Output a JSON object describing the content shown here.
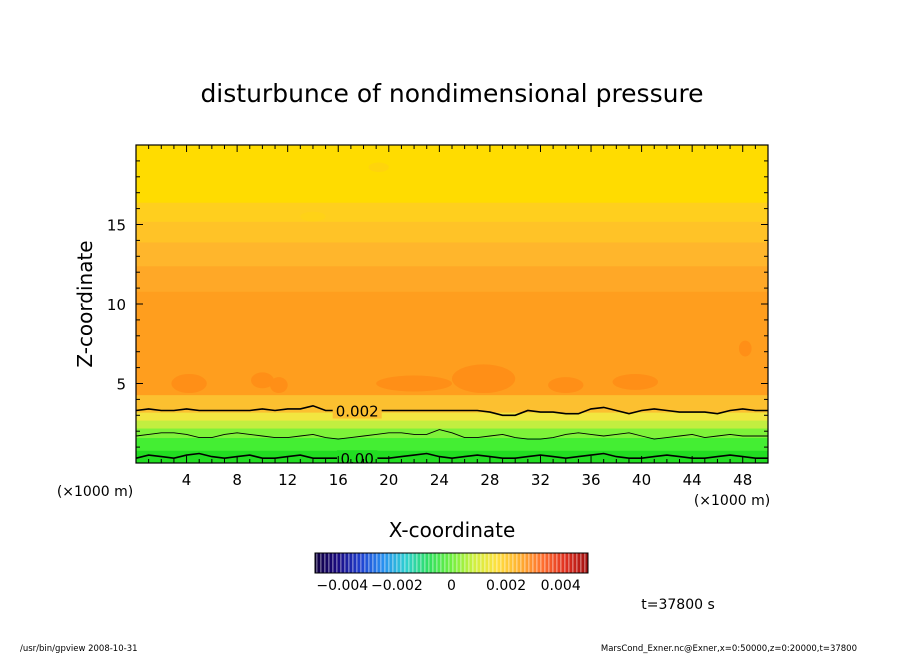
{
  "chart_data": {
    "type": "heatmap",
    "title": "disturbunce of nondimensional pressure",
    "xlabel": "X-coordinate",
    "ylabel": "Z-coordinate",
    "x_unit_left": "(×1000 m)",
    "x_unit_right": "(×1000 m)",
    "xlim": [
      0,
      50
    ],
    "ylim": [
      0,
      20
    ],
    "x_ticks": [
      4,
      8,
      12,
      16,
      20,
      24,
      28,
      32,
      36,
      40,
      44,
      48
    ],
    "y_ticks": [
      5,
      10,
      15
    ],
    "grid": false,
    "bands": [
      {
        "z0": 0.0,
        "z1": 0.8,
        "color": "#22dd22"
      },
      {
        "z0": 0.8,
        "z1": 1.6,
        "color": "#44ee33"
      },
      {
        "z0": 1.6,
        "z1": 2.2,
        "color": "#7ef23a"
      },
      {
        "z0": 2.2,
        "z1": 2.7,
        "color": "#c2ee40"
      },
      {
        "z0": 2.7,
        "z1": 3.2,
        "color": "#f2e640"
      },
      {
        "z0": 3.2,
        "z1": 4.3,
        "color": "#fcc030"
      },
      {
        "z0": 4.3,
        "z1": 10.8,
        "color": "#ff9e1e"
      },
      {
        "z0": 10.8,
        "z1": 12.4,
        "color": "#ffa827"
      },
      {
        "z0": 12.4,
        "z1": 13.9,
        "color": "#ffb62c"
      },
      {
        "z0": 13.9,
        "z1": 15.2,
        "color": "#ffc327"
      },
      {
        "z0": 15.2,
        "z1": 16.4,
        "color": "#ffcf1e"
      },
      {
        "z0": 16.4,
        "z1": 20.0,
        "color": "#ffdc00"
      }
    ],
    "contours": [
      {
        "label": "0.002",
        "label_x": 17.5,
        "z": [
          3.3,
          3.4,
          3.3,
          3.3,
          3.4,
          3.3,
          3.3,
          3.3,
          3.3,
          3.3,
          3.4,
          3.3,
          3.4,
          3.4,
          3.6,
          3.3,
          3.3,
          3.3,
          3.3,
          3.3,
          3.3,
          3.3,
          3.3,
          3.3,
          3.3,
          3.3,
          3.3,
          3.3,
          3.2,
          3.0,
          3.0,
          3.3,
          3.2,
          3.2,
          3.1,
          3.1,
          3.4,
          3.5,
          3.3,
          3.1,
          3.3,
          3.4,
          3.3,
          3.2,
          3.2,
          3.2,
          3.1,
          3.3,
          3.4,
          3.3,
          3.3
        ]
      },
      {
        "label": "",
        "label_x": 0,
        "z": [
          1.7,
          1.8,
          1.9,
          1.9,
          1.8,
          1.6,
          1.6,
          1.8,
          1.9,
          1.8,
          1.7,
          1.6,
          1.6,
          1.7,
          1.8,
          1.6,
          1.5,
          1.6,
          1.7,
          1.8,
          1.9,
          1.9,
          1.8,
          1.8,
          2.1,
          1.9,
          1.6,
          1.6,
          1.7,
          1.8,
          1.6,
          1.5,
          1.5,
          1.6,
          1.8,
          1.9,
          1.8,
          1.7,
          1.8,
          1.9,
          1.7,
          1.5,
          1.6,
          1.7,
          1.8,
          1.6,
          1.7,
          1.8,
          1.7,
          1.7,
          1.7
        ]
      },
      {
        "label": "0.00",
        "label_x": 17.5,
        "z": [
          0.3,
          0.5,
          0.4,
          0.3,
          0.5,
          0.6,
          0.4,
          0.3,
          0.4,
          0.5,
          0.3,
          0.3,
          0.4,
          0.5,
          0.3,
          0.3,
          0.3,
          0.3,
          0.3,
          0.3,
          0.3,
          0.4,
          0.5,
          0.6,
          0.4,
          0.3,
          0.4,
          0.5,
          0.4,
          0.3,
          0.3,
          0.4,
          0.5,
          0.4,
          0.3,
          0.4,
          0.5,
          0.6,
          0.4,
          0.3,
          0.3,
          0.4,
          0.5,
          0.4,
          0.3,
          0.3,
          0.4,
          0.5,
          0.4,
          0.3,
          0.3
        ]
      }
    ],
    "patches": [
      {
        "x": 4.2,
        "z": 5.0,
        "rx": 1.4,
        "rz": 0.6,
        "color": "#ff8f17"
      },
      {
        "x": 10.0,
        "z": 5.2,
        "rx": 0.9,
        "rz": 0.5,
        "color": "#ff8f17"
      },
      {
        "x": 11.3,
        "z": 4.9,
        "rx": 0.7,
        "rz": 0.5,
        "color": "#ff8f17"
      },
      {
        "x": 22.0,
        "z": 5.0,
        "rx": 3.0,
        "rz": 0.5,
        "color": "#ff8f17"
      },
      {
        "x": 27.5,
        "z": 5.3,
        "rx": 2.5,
        "rz": 0.9,
        "color": "#ff8f17"
      },
      {
        "x": 34.0,
        "z": 4.9,
        "rx": 1.4,
        "rz": 0.5,
        "color": "#ff8f17"
      },
      {
        "x": 39.5,
        "z": 5.1,
        "rx": 1.8,
        "rz": 0.5,
        "color": "#ff8f17"
      },
      {
        "x": 48.2,
        "z": 7.2,
        "rx": 0.5,
        "rz": 0.5,
        "color": "#ff8f17"
      },
      {
        "x": 14.0,
        "z": 15.5,
        "rx": 1.0,
        "rz": 0.3,
        "color": "#ffd217"
      },
      {
        "x": 19.2,
        "z": 18.6,
        "rx": 0.8,
        "rz": 0.3,
        "color": "#ffd40c"
      }
    ],
    "colorbar": {
      "tick_labels": [
        "−0.004",
        "−0.002",
        "0",
        "0.002",
        "0.004"
      ],
      "tick_values": [
        -0.004,
        -0.002,
        0,
        0.002,
        0.004
      ],
      "range": [
        -0.005,
        0.005
      ],
      "stops": [
        "#100040",
        "#1a0a80",
        "#2040d0",
        "#2890f0",
        "#30d0d0",
        "#30e060",
        "#70f040",
        "#d0f040",
        "#ffe040",
        "#ffb030",
        "#ff7030",
        "#e03020",
        "#a01010"
      ]
    },
    "time_label": "t=37800 s",
    "footer_left": "/usr/bin/gpview  2008-10-31",
    "footer_right": "MarsCond_Exner.nc@Exner,x=0:50000,z=0:20000,t=37800"
  }
}
